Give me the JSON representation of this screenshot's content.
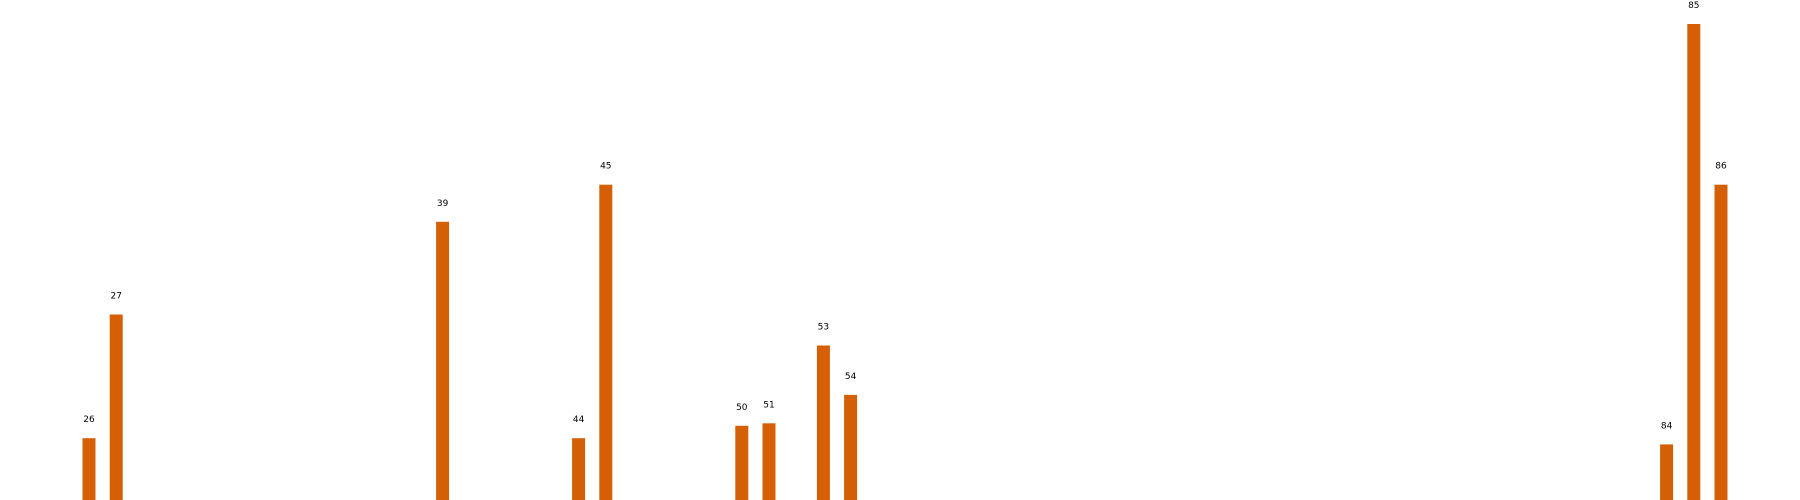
{
  "chart_data": {
    "type": "bar",
    "categories": [
      "26",
      "27",
      "39",
      "44",
      "45",
      "50",
      "51",
      "53",
      "54",
      "84",
      "85",
      "86"
    ],
    "x": [
      26,
      27,
      39,
      44,
      45,
      50,
      51,
      53,
      54,
      84,
      85,
      86
    ],
    "series": [
      {
        "values": [
          0.05,
          0.15,
          0.225,
          0.05,
          0.255,
          0.06,
          0.062,
          0.125,
          0.085,
          0.045,
          0.385,
          0.255
        ],
        "labels": [
          "26",
          "27",
          "39",
          "44",
          "45",
          "50",
          "51",
          "53",
          "54",
          "84",
          "85",
          "86"
        ],
        "color": "#d45f05"
      }
    ],
    "title": "",
    "xlabel": "",
    "ylabel": "",
    "ylim": [
      0,
      0.4
    ],
    "grid": false,
    "axes_visible": false
  }
}
